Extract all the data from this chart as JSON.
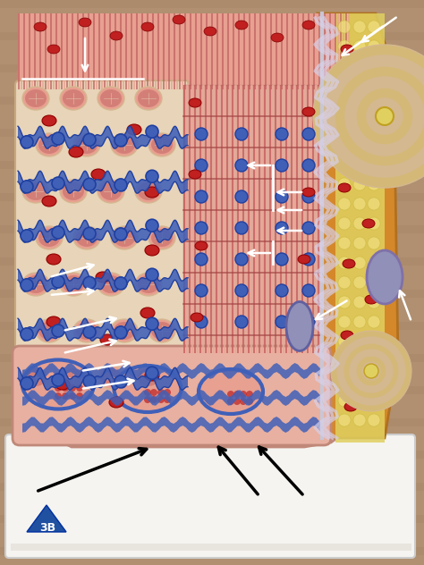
{
  "figsize": [
    4.74,
    6.32
  ],
  "dpi": 100,
  "bg_wood_light": "#b09070",
  "bg_wood_dark": "#8a6a4a",
  "base_white": "#f5f4f0",
  "base_shadow": "#ddd8d0",
  "platform_color": "#e8e4de",
  "muscle_pink_light": "#e8a090",
  "muscle_pink_dark": "#c06060",
  "muscle_red": "#c03030",
  "muscle_salmon": "#e0a898",
  "connective_beige": "#e8d4b8",
  "connective_tan": "#d4b890",
  "membrane_blue": "#4060b8",
  "membrane_blue_dark": "#2040a0",
  "nerve_outer_orange": "#d4882a",
  "nerve_yellow": "#e0d060",
  "nerve_beige": "#d4b878",
  "nerve_purple": "#9090b8",
  "nerve_purple2": "#8070a8",
  "nerve_lavender": "#b0a0c8",
  "nerve_white_stripe": "#c8c0d8",
  "synapse_purple": "#9090b8",
  "blood_red": "#c02020",
  "white": "#ffffff",
  "black": "#000000",
  "logo_blue": "#2050a0",
  "outer_skin_pink": "#e8b0a0",
  "outer_skin_orange": "#d09060",
  "arrow_white": "#ffffff",
  "arrow_black": "#000000"
}
